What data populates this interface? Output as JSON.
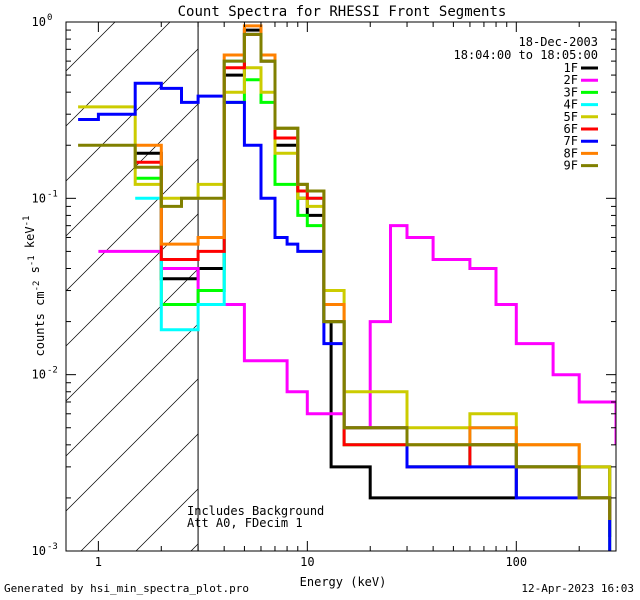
{
  "chart_data": {
    "type": "line",
    "title": "Count Spectra for RHESSI Front Segments",
    "xlabel": "Energy (keV)",
    "ylabel": "counts cm^-2 s^-1 keV^-1",
    "xscale": "log",
    "yscale": "log",
    "xlim": [
      0.7,
      300
    ],
    "ylim": [
      0.001,
      1
    ],
    "x_ticks": [
      {
        "value": 1,
        "label": "1"
      },
      {
        "value": 10,
        "label": "10"
      },
      {
        "value": 100,
        "label": "100"
      }
    ],
    "y_ticks": [
      {
        "value": 1,
        "base": "10",
        "exp": "0"
      },
      {
        "value": 0.1,
        "base": "10",
        "exp": "-1"
      },
      {
        "value": 0.01,
        "base": "10",
        "exp": "-2"
      },
      {
        "value": 0.001,
        "base": "10",
        "exp": "-3"
      }
    ],
    "date": "18-Dec-2003",
    "time_range": "18:04:00 to 18:05:00",
    "attenuator_cutoff_kev": 3,
    "notes": [
      "Includes Background",
      "Att A0, FDecim 1"
    ],
    "series": [
      {
        "name": "1F",
        "color": "#000000",
        "points": [
          [
            1.5,
            0.18
          ],
          [
            2,
            0.035
          ],
          [
            3,
            0.04
          ],
          [
            4,
            0.5
          ],
          [
            5,
            0.9
          ],
          [
            6,
            0.6
          ],
          [
            7,
            0.2
          ],
          [
            9,
            0.1
          ],
          [
            10,
            0.08
          ],
          [
            12,
            0.02
          ],
          [
            13,
            0.003
          ],
          [
            20,
            0.002
          ],
          [
            50,
            0.002
          ],
          [
            100,
            0.003
          ],
          [
            200,
            0.003
          ],
          [
            280,
            0.0012
          ]
        ]
      },
      {
        "name": "2F",
        "color": "#ff00ff",
        "points": [
          [
            1,
            0.05
          ],
          [
            2,
            0.04
          ],
          [
            3,
            0.025
          ],
          [
            5,
            0.012
          ],
          [
            8,
            0.008
          ],
          [
            10,
            0.006
          ],
          [
            15,
            0.005
          ],
          [
            20,
            0.02
          ],
          [
            25,
            0.07
          ],
          [
            30,
            0.06
          ],
          [
            40,
            0.045
          ],
          [
            60,
            0.04
          ],
          [
            80,
            0.025
          ],
          [
            100,
            0.015
          ],
          [
            150,
            0.01
          ],
          [
            200,
            0.007
          ],
          [
            300,
            0.004
          ]
        ]
      },
      {
        "name": "3F",
        "color": "#00ff00",
        "points": [
          [
            1.5,
            0.13
          ],
          [
            2,
            0.025
          ],
          [
            3,
            0.03
          ],
          [
            4,
            0.35
          ],
          [
            5,
            0.47
          ],
          [
            6,
            0.35
          ],
          [
            7,
            0.12
          ],
          [
            9,
            0.08
          ],
          [
            10,
            0.07
          ],
          [
            12,
            0.02
          ],
          [
            15,
            0.004
          ],
          [
            30,
            0.003
          ],
          [
            60,
            0.004
          ],
          [
            100,
            0.003
          ],
          [
            200,
            0.002
          ],
          [
            280,
            0.001
          ]
        ]
      },
      {
        "name": "4F",
        "color": "#00ffff",
        "points": [
          [
            1.5,
            0.1
          ],
          [
            2,
            0.018
          ],
          [
            3,
            0.025
          ],
          [
            4,
            0.6
          ],
          [
            5,
            0.85
          ],
          [
            6,
            0.6
          ],
          [
            7,
            0.25
          ],
          [
            9,
            0.12
          ],
          [
            10,
            0.1
          ],
          [
            12,
            0.02
          ],
          [
            15,
            0.005
          ],
          [
            30,
            0.003
          ],
          [
            60,
            0.005
          ],
          [
            100,
            0.003
          ],
          [
            200,
            0.002
          ],
          [
            280,
            0.0015
          ]
        ]
      },
      {
        "name": "5F",
        "color": "#cccc00",
        "points": [
          [
            0.8,
            0.33
          ],
          [
            1.5,
            0.12
          ],
          [
            2,
            0.1
          ],
          [
            3,
            0.12
          ],
          [
            4,
            0.4
          ],
          [
            5,
            0.55
          ],
          [
            6,
            0.4
          ],
          [
            7,
            0.18
          ],
          [
            9,
            0.1
          ],
          [
            10,
            0.09
          ],
          [
            12,
            0.03
          ],
          [
            15,
            0.008
          ],
          [
            30,
            0.005
          ],
          [
            60,
            0.006
          ],
          [
            100,
            0.004
          ],
          [
            200,
            0.003
          ],
          [
            280,
            0.002
          ]
        ]
      },
      {
        "name": "6F",
        "color": "#ff0000",
        "points": [
          [
            1.5,
            0.16
          ],
          [
            2,
            0.045
          ],
          [
            3,
            0.05
          ],
          [
            4,
            0.55
          ],
          [
            5,
            0.85
          ],
          [
            6,
            0.6
          ],
          [
            7,
            0.22
          ],
          [
            9,
            0.11
          ],
          [
            10,
            0.1
          ],
          [
            12,
            0.02
          ],
          [
            15,
            0.004
          ],
          [
            30,
            0.003
          ],
          [
            60,
            0.004
          ],
          [
            100,
            0.003
          ],
          [
            200,
            0.002
          ],
          [
            280,
            0.0015
          ]
        ]
      },
      {
        "name": "7F",
        "color": "#0000ff",
        "points": [
          [
            0.8,
            0.28
          ],
          [
            1,
            0.3
          ],
          [
            1.5,
            0.45
          ],
          [
            2,
            0.42
          ],
          [
            2.5,
            0.35
          ],
          [
            3,
            0.38
          ],
          [
            4,
            0.35
          ],
          [
            5,
            0.2
          ],
          [
            6,
            0.1
          ],
          [
            7,
            0.06
          ],
          [
            8,
            0.055
          ],
          [
            9,
            0.05
          ],
          [
            10,
            0.05
          ],
          [
            12,
            0.015
          ],
          [
            15,
            0.005
          ],
          [
            30,
            0.003
          ],
          [
            60,
            0.003
          ],
          [
            100,
            0.002
          ],
          [
            200,
            0.002
          ],
          [
            280,
            0.001
          ]
        ]
      },
      {
        "name": "8F",
        "color": "#ff8000",
        "points": [
          [
            1.5,
            0.2
          ],
          [
            2,
            0.055
          ],
          [
            3,
            0.06
          ],
          [
            4,
            0.65
          ],
          [
            5,
            0.95
          ],
          [
            6,
            0.65
          ],
          [
            7,
            0.25
          ],
          [
            9,
            0.12
          ],
          [
            10,
            0.11
          ],
          [
            12,
            0.025
          ],
          [
            15,
            0.005
          ],
          [
            30,
            0.004
          ],
          [
            60,
            0.005
          ],
          [
            100,
            0.004
          ],
          [
            200,
            0.002
          ],
          [
            280,
            0.0015
          ]
        ]
      },
      {
        "name": "9F",
        "color": "#808000",
        "points": [
          [
            0.8,
            0.2
          ],
          [
            1.5,
            0.15
          ],
          [
            2,
            0.09
          ],
          [
            2.5,
            0.1
          ],
          [
            3,
            0.1
          ],
          [
            4,
            0.6
          ],
          [
            5,
            0.85
          ],
          [
            6,
            0.6
          ],
          [
            7,
            0.25
          ],
          [
            9,
            0.12
          ],
          [
            10,
            0.11
          ],
          [
            12,
            0.02
          ],
          [
            15,
            0.005
          ],
          [
            30,
            0.004
          ],
          [
            60,
            0.004
          ],
          [
            100,
            0.003
          ],
          [
            200,
            0.002
          ],
          [
            280,
            0.0015
          ]
        ]
      }
    ]
  },
  "footer": {
    "generated_by": "Generated by hsi_min_spectra_plot.pro",
    "timestamp": "12-Apr-2023 16:03"
  }
}
